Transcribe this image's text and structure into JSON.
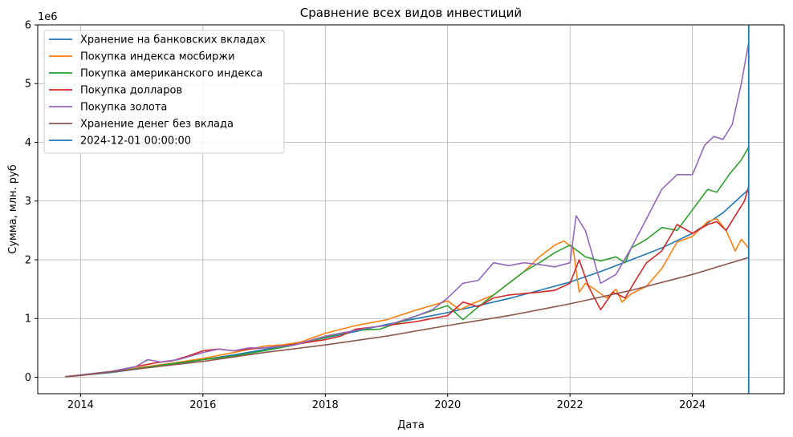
{
  "chart_data": {
    "type": "line",
    "title": "Сравнение всех видов инвестиций",
    "xlabel": "Дата",
    "ylabel": "Сумма, млн. руб",
    "y_multiplier_label": "1e6",
    "xlim": [
      2013.3,
      2025.5
    ],
    "ylim": [
      -0.28,
      6.0
    ],
    "x_ticks": [
      2014,
      2016,
      2018,
      2020,
      2022,
      2024
    ],
    "x_tick_labels": [
      "2014",
      "2016",
      "2018",
      "2020",
      "2022",
      "2024"
    ],
    "y_ticks": [
      0,
      1,
      2,
      3,
      4,
      5,
      6
    ],
    "y_tick_labels": [
      "0",
      "1",
      "2",
      "3",
      "4",
      "5",
      "6"
    ],
    "grid": true,
    "legend_position": "upper-left",
    "vline": {
      "label": "2024-12-01 00:00:00",
      "x": 2024.92,
      "color": "#1f77b4"
    },
    "series": [
      {
        "name": "Хранение на банковских вкладах",
        "color": "#1f77b4",
        "points": [
          [
            2013.75,
            0.01
          ],
          [
            2014.5,
            0.08
          ],
          [
            2015,
            0.15
          ],
          [
            2015.5,
            0.22
          ],
          [
            2016,
            0.3
          ],
          [
            2016.5,
            0.38
          ],
          [
            2017,
            0.47
          ],
          [
            2017.5,
            0.57
          ],
          [
            2018,
            0.67
          ],
          [
            2018.5,
            0.78
          ],
          [
            2019,
            0.9
          ],
          [
            2019.5,
            1.0
          ],
          [
            2020,
            1.1
          ],
          [
            2020.5,
            1.22
          ],
          [
            2021,
            1.34
          ],
          [
            2021.5,
            1.48
          ],
          [
            2022,
            1.62
          ],
          [
            2022.5,
            1.8
          ],
          [
            2023,
            2.0
          ],
          [
            2023.5,
            2.2
          ],
          [
            2024,
            2.45
          ],
          [
            2024.5,
            2.8
          ],
          [
            2024.92,
            3.2
          ]
        ]
      },
      {
        "name": "Покупка индекса мосбиржи",
        "color": "#ff7f0e",
        "points": [
          [
            2013.75,
            0.01
          ],
          [
            2014.5,
            0.09
          ],
          [
            2015,
            0.17
          ],
          [
            2015.5,
            0.24
          ],
          [
            2016,
            0.32
          ],
          [
            2016.5,
            0.42
          ],
          [
            2017,
            0.53
          ],
          [
            2017.3,
            0.55
          ],
          [
            2017.6,
            0.6
          ],
          [
            2018,
            0.75
          ],
          [
            2018.5,
            0.88
          ],
          [
            2019,
            0.98
          ],
          [
            2019.5,
            1.15
          ],
          [
            2020,
            1.3
          ],
          [
            2020.2,
            1.15
          ],
          [
            2020.4,
            1.25
          ],
          [
            2020.75,
            1.4
          ],
          [
            2021,
            1.6
          ],
          [
            2021.25,
            1.8
          ],
          [
            2021.5,
            2.05
          ],
          [
            2021.75,
            2.25
          ],
          [
            2021.9,
            2.32
          ],
          [
            2022.05,
            2.2
          ],
          [
            2022.15,
            1.45
          ],
          [
            2022.25,
            1.6
          ],
          [
            2022.4,
            1.5
          ],
          [
            2022.6,
            1.35
          ],
          [
            2022.75,
            1.5
          ],
          [
            2022.85,
            1.28
          ],
          [
            2023,
            1.42
          ],
          [
            2023.25,
            1.55
          ],
          [
            2023.5,
            1.85
          ],
          [
            2023.75,
            2.3
          ],
          [
            2024,
            2.4
          ],
          [
            2024.25,
            2.65
          ],
          [
            2024.4,
            2.7
          ],
          [
            2024.55,
            2.5
          ],
          [
            2024.7,
            2.15
          ],
          [
            2024.8,
            2.35
          ],
          [
            2024.92,
            2.2
          ]
        ]
      },
      {
        "name": "Покупка американского индекса",
        "color": "#2ca02c",
        "points": [
          [
            2013.75,
            0.01
          ],
          [
            2014.5,
            0.09
          ],
          [
            2015,
            0.16
          ],
          [
            2015.5,
            0.23
          ],
          [
            2016,
            0.3
          ],
          [
            2016.5,
            0.36
          ],
          [
            2017,
            0.45
          ],
          [
            2017.5,
            0.55
          ],
          [
            2018,
            0.68
          ],
          [
            2018.5,
            0.8
          ],
          [
            2018.9,
            0.82
          ],
          [
            2019.25,
            0.95
          ],
          [
            2019.5,
            1.05
          ],
          [
            2020,
            1.22
          ],
          [
            2020.25,
            0.98
          ],
          [
            2020.5,
            1.2
          ],
          [
            2020.75,
            1.4
          ],
          [
            2021,
            1.6
          ],
          [
            2021.25,
            1.8
          ],
          [
            2021.5,
            1.95
          ],
          [
            2021.75,
            2.12
          ],
          [
            2021.9,
            2.2
          ],
          [
            2022,
            2.25
          ],
          [
            2022.25,
            2.05
          ],
          [
            2022.5,
            1.98
          ],
          [
            2022.75,
            2.05
          ],
          [
            2022.9,
            1.95
          ],
          [
            2023,
            2.2
          ],
          [
            2023.25,
            2.35
          ],
          [
            2023.5,
            2.55
          ],
          [
            2023.75,
            2.5
          ],
          [
            2024,
            2.85
          ],
          [
            2024.25,
            3.2
          ],
          [
            2024.4,
            3.15
          ],
          [
            2024.6,
            3.45
          ],
          [
            2024.8,
            3.7
          ],
          [
            2024.92,
            3.92
          ]
        ]
      },
      {
        "name": "Покупка долларов",
        "color": "#d62728",
        "points": [
          [
            2013.75,
            0.01
          ],
          [
            2014.5,
            0.1
          ],
          [
            2014.9,
            0.18
          ],
          [
            2015.25,
            0.25
          ],
          [
            2015.5,
            0.28
          ],
          [
            2015.75,
            0.36
          ],
          [
            2016,
            0.45
          ],
          [
            2016.25,
            0.48
          ],
          [
            2016.5,
            0.45
          ],
          [
            2016.75,
            0.48
          ],
          [
            2017,
            0.5
          ],
          [
            2017.5,
            0.56
          ],
          [
            2018,
            0.64
          ],
          [
            2018.25,
            0.7
          ],
          [
            2018.5,
            0.82
          ],
          [
            2018.75,
            0.85
          ],
          [
            2019,
            0.88
          ],
          [
            2019.5,
            0.95
          ],
          [
            2019.75,
            1.0
          ],
          [
            2020,
            1.05
          ],
          [
            2020.25,
            1.28
          ],
          [
            2020.5,
            1.2
          ],
          [
            2020.75,
            1.35
          ],
          [
            2021,
            1.4
          ],
          [
            2021.5,
            1.45
          ],
          [
            2021.75,
            1.48
          ],
          [
            2022,
            1.6
          ],
          [
            2022.15,
            2.0
          ],
          [
            2022.3,
            1.55
          ],
          [
            2022.5,
            1.15
          ],
          [
            2022.7,
            1.45
          ],
          [
            2022.9,
            1.35
          ],
          [
            2023.1,
            1.7
          ],
          [
            2023.25,
            1.95
          ],
          [
            2023.5,
            2.15
          ],
          [
            2023.75,
            2.6
          ],
          [
            2024,
            2.45
          ],
          [
            2024.25,
            2.6
          ],
          [
            2024.4,
            2.65
          ],
          [
            2024.55,
            2.5
          ],
          [
            2024.7,
            2.75
          ],
          [
            2024.85,
            3.0
          ],
          [
            2024.92,
            3.25
          ]
        ]
      },
      {
        "name": "Покупка золота",
        "color": "#9467bd",
        "points": [
          [
            2013.75,
            0.01
          ],
          [
            2014.5,
            0.1
          ],
          [
            2014.9,
            0.18
          ],
          [
            2015.1,
            0.3
          ],
          [
            2015.3,
            0.26
          ],
          [
            2015.6,
            0.3
          ],
          [
            2016,
            0.42
          ],
          [
            2016.25,
            0.48
          ],
          [
            2016.5,
            0.45
          ],
          [
            2016.75,
            0.5
          ],
          [
            2017,
            0.5
          ],
          [
            2017.5,
            0.55
          ],
          [
            2018,
            0.7
          ],
          [
            2018.5,
            0.8
          ],
          [
            2018.75,
            0.85
          ],
          [
            2019,
            0.88
          ],
          [
            2019.5,
            1.05
          ],
          [
            2019.75,
            1.15
          ],
          [
            2020,
            1.35
          ],
          [
            2020.25,
            1.6
          ],
          [
            2020.5,
            1.65
          ],
          [
            2020.75,
            1.95
          ],
          [
            2021,
            1.9
          ],
          [
            2021.25,
            1.95
          ],
          [
            2021.5,
            1.92
          ],
          [
            2021.75,
            1.88
          ],
          [
            2022,
            1.95
          ],
          [
            2022.1,
            2.75
          ],
          [
            2022.25,
            2.5
          ],
          [
            2022.5,
            1.6
          ],
          [
            2022.75,
            1.75
          ],
          [
            2023,
            2.2
          ],
          [
            2023.25,
            2.7
          ],
          [
            2023.5,
            3.2
          ],
          [
            2023.75,
            3.45
          ],
          [
            2024,
            3.45
          ],
          [
            2024.2,
            3.95
          ],
          [
            2024.35,
            4.1
          ],
          [
            2024.5,
            4.05
          ],
          [
            2024.65,
            4.3
          ],
          [
            2024.8,
            5.0
          ],
          [
            2024.92,
            5.7
          ]
        ]
      },
      {
        "name": "Хранение денег без вклада",
        "color": "#8c564b",
        "points": [
          [
            2013.75,
            0.01
          ],
          [
            2014,
            0.03
          ],
          [
            2015,
            0.15
          ],
          [
            2016,
            0.27
          ],
          [
            2017,
            0.42
          ],
          [
            2018,
            0.55
          ],
          [
            2019,
            0.7
          ],
          [
            2020,
            0.88
          ],
          [
            2021,
            1.05
          ],
          [
            2022,
            1.25
          ],
          [
            2023,
            1.48
          ],
          [
            2024,
            1.75
          ],
          [
            2024.92,
            2.04
          ]
        ]
      }
    ]
  }
}
